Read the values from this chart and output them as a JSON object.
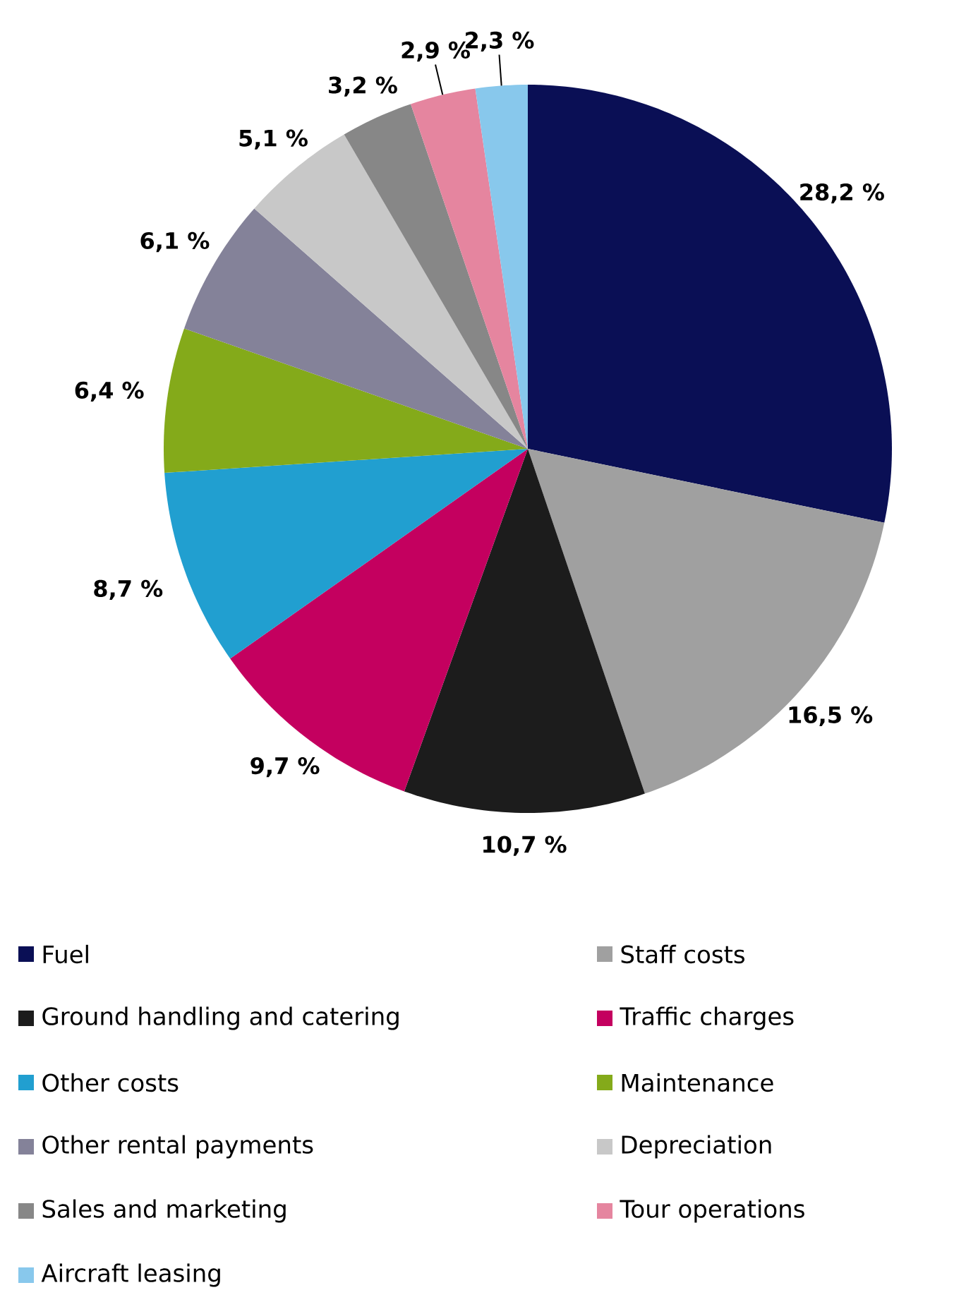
{
  "chart_data": {
    "type": "pie",
    "categories": [
      "Fuel",
      "Staff costs",
      "Ground handling and catering",
      "Traffic charges",
      "Other costs",
      "Maintenance",
      "Other rental payments",
      "Depreciation",
      "Sales and marketing",
      "Tour operations",
      "Aircraft leasing"
    ],
    "values": [
      28.2,
      16.5,
      10.7,
      9.7,
      8.7,
      6.4,
      6.1,
      5.1,
      3.2,
      2.9,
      2.3
    ],
    "value_labels": [
      "28,2 %",
      "16,5 %",
      "10,7 %",
      "9,7 %",
      "8,7 %",
      "6,4 %",
      "6,1 %",
      "5,1 %",
      "3,2 %",
      "2,9 %",
      "2,3 %"
    ],
    "colors": [
      "#0a0f55",
      "#a0a0a0",
      "#1c1c1c",
      "#c4005f",
      "#219fd0",
      "#84aa1a",
      "#848299",
      "#c8c8c8",
      "#878787",
      "#e5859f",
      "#88c8ec"
    ],
    "legend": "bottom"
  }
}
